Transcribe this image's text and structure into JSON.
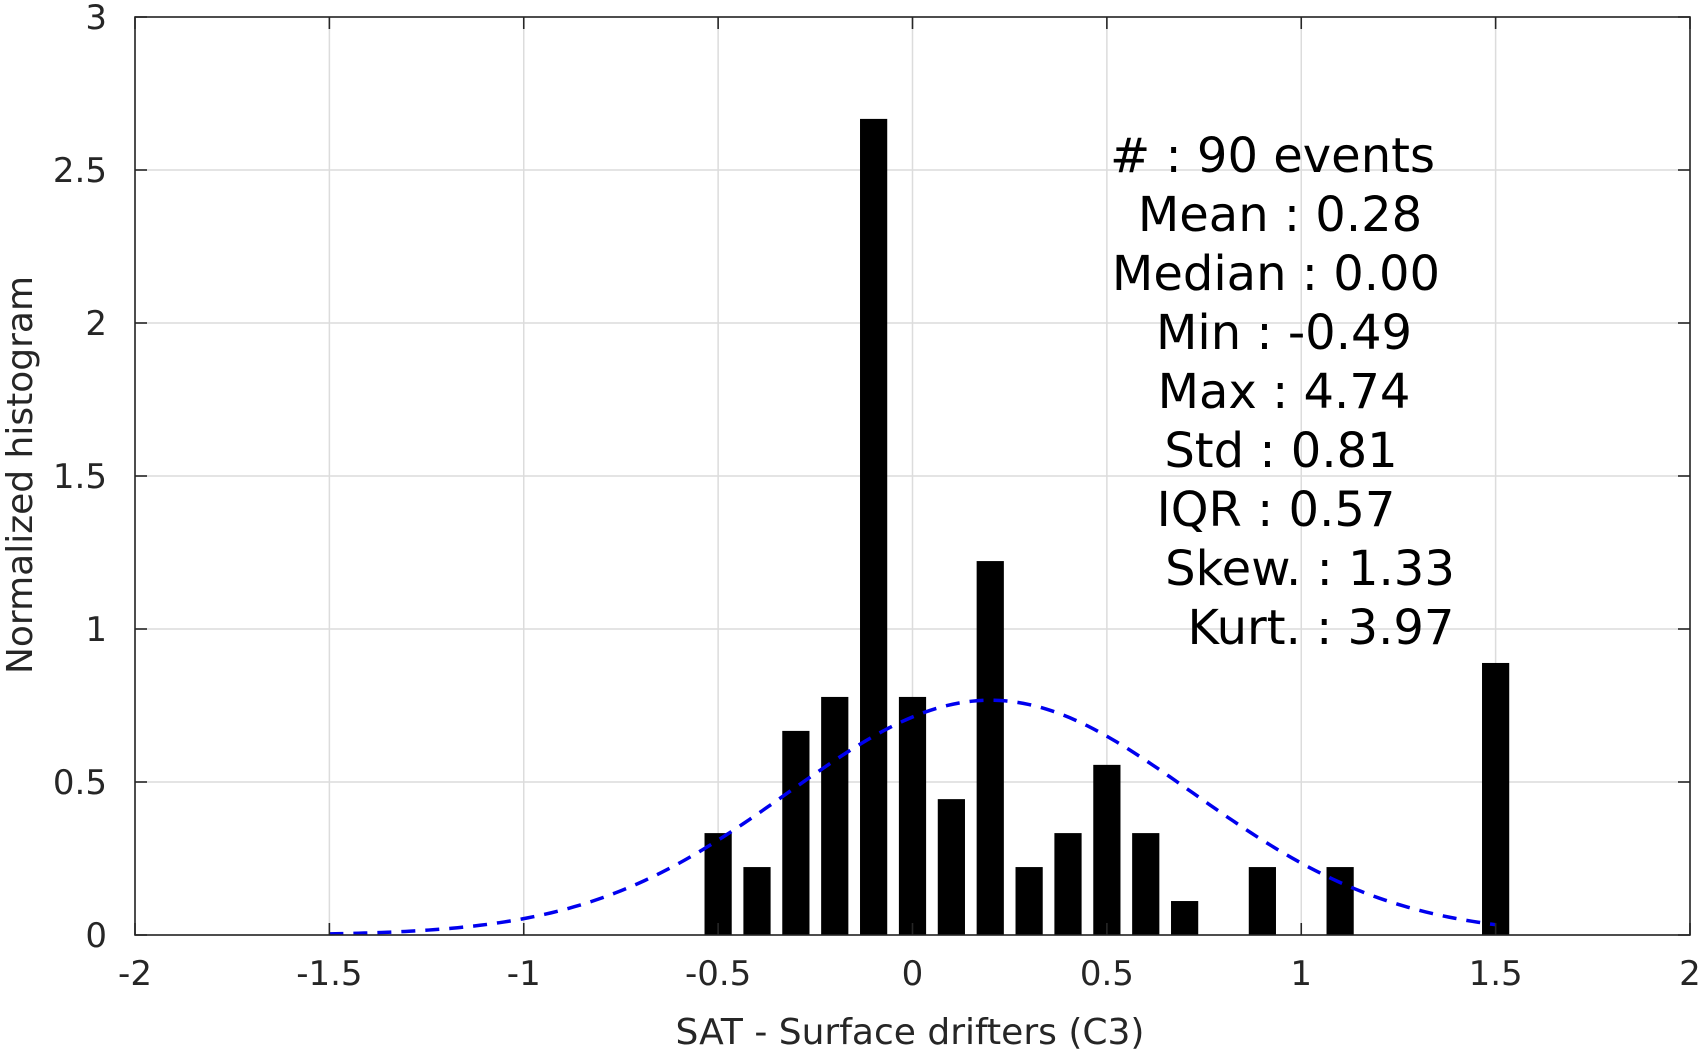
{
  "chart_data": {
    "type": "bar",
    "xlabel": "SAT - Surface drifters (C3)",
    "ylabel": "Normalized histogram",
    "xlim": [
      -2,
      2
    ],
    "ylim": [
      0,
      3
    ],
    "x_ticks": [
      -2,
      -1.5,
      -1,
      -0.5,
      0,
      0.5,
      1,
      1.5,
      2
    ],
    "x_tick_labels": [
      "-2",
      "-1.5",
      "-1",
      "-0.5",
      "0",
      "0.5",
      "1",
      "1.5",
      "2"
    ],
    "y_ticks": [
      0,
      0.5,
      1,
      1.5,
      2,
      2.5,
      3
    ],
    "y_tick_labels": [
      "0",
      "0.5",
      "1",
      "1.5",
      "2",
      "2.5",
      "3"
    ],
    "grid": true,
    "bar_color": "#000000",
    "bar_width": 0.07,
    "bars": [
      {
        "x": -0.5,
        "y": 0.333
      },
      {
        "x": -0.4,
        "y": 0.222
      },
      {
        "x": -0.3,
        "y": 0.667
      },
      {
        "x": -0.2,
        "y": 0.778
      },
      {
        "x": -0.1,
        "y": 2.667
      },
      {
        "x": 0.0,
        "y": 0.778
      },
      {
        "x": 0.1,
        "y": 0.444
      },
      {
        "x": 0.2,
        "y": 1.222
      },
      {
        "x": 0.3,
        "y": 0.222
      },
      {
        "x": 0.4,
        "y": 0.333
      },
      {
        "x": 0.5,
        "y": 0.556
      },
      {
        "x": 0.6,
        "y": 0.333
      },
      {
        "x": 0.7,
        "y": 0.111
      },
      {
        "x": 0.9,
        "y": 0.222
      },
      {
        "x": 1.1,
        "y": 0.222
      },
      {
        "x": 1.5,
        "y": 0.889
      }
    ],
    "fit_curve": {
      "style": "dashed",
      "color": "#0000ee",
      "mean": 0.2,
      "std": 0.52,
      "x_range": [
        -1.5,
        1.5
      ]
    },
    "stats": {
      "lines": [
        {
          "key": "#",
          "value": ": 90 events"
        },
        {
          "key": "Mean",
          "value": ": 0.28"
        },
        {
          "key": "Median",
          "value": ": 0.00"
        },
        {
          "key": "Min",
          "value": ": -0.49"
        },
        {
          "key": "Max",
          "value": ": 4.74"
        },
        {
          "key": "Std",
          "value": ": 0.81"
        },
        {
          "key": "IQR",
          "value": ": 0.57"
        },
        {
          "key": "Skew.",
          "value": ": 1.33"
        },
        {
          "key": "Kurt.",
          "value": ": 3.97"
        }
      ]
    }
  }
}
